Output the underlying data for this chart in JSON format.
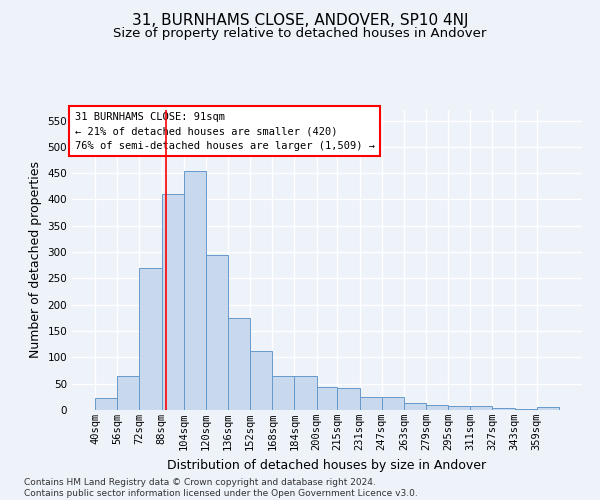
{
  "title": "31, BURNHAMS CLOSE, ANDOVER, SP10 4NJ",
  "subtitle": "Size of property relative to detached houses in Andover",
  "xlabel": "Distribution of detached houses by size in Andover",
  "ylabel": "Number of detached properties",
  "footer_line1": "Contains HM Land Registry data © Crown copyright and database right 2024.",
  "footer_line2": "Contains public sector information licensed under the Open Government Licence v3.0.",
  "annotation_line1": "31 BURNHAMS CLOSE: 91sqm",
  "annotation_line2": "← 21% of detached houses are smaller (420)",
  "annotation_line3": "76% of semi-detached houses are larger (1,509) →",
  "bar_color": "#c8d9ee",
  "bar_edge_color": "#6699cc",
  "red_line_x": 91,
  "categories": [
    "40sqm",
    "56sqm",
    "72sqm",
    "88sqm",
    "104sqm",
    "120sqm",
    "136sqm",
    "152sqm",
    "168sqm",
    "184sqm",
    "200sqm",
    "215sqm",
    "231sqm",
    "247sqm",
    "263sqm",
    "279sqm",
    "295sqm",
    "311sqm",
    "327sqm",
    "343sqm",
    "359sqm"
  ],
  "bin_edges": [
    40,
    56,
    72,
    88,
    104,
    120,
    136,
    152,
    168,
    184,
    200,
    215,
    231,
    247,
    263,
    279,
    295,
    311,
    327,
    343,
    359,
    375
  ],
  "values": [
    22,
    65,
    270,
    410,
    455,
    295,
    175,
    113,
    65,
    65,
    43,
    42,
    25,
    25,
    14,
    10,
    7,
    7,
    3,
    2,
    5
  ],
  "ylim": [
    0,
    570
  ],
  "yticks": [
    0,
    50,
    100,
    150,
    200,
    250,
    300,
    350,
    400,
    450,
    500,
    550
  ],
  "background_color": "#eef2f9",
  "grid_color": "#ffffff",
  "title_fontsize": 11,
  "subtitle_fontsize": 9.5,
  "axis_label_fontsize": 9,
  "tick_fontsize": 7.5,
  "footer_fontsize": 6.5,
  "annotation_fontsize": 7.5
}
